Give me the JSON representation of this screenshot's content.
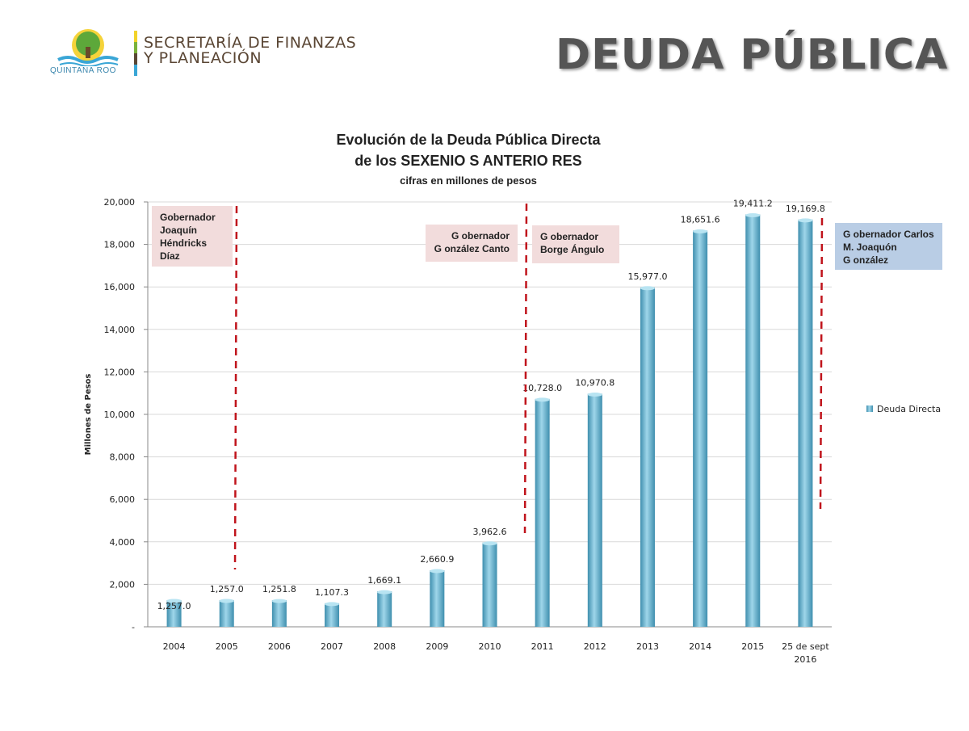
{
  "header": {
    "logo_lines": [
      "SECRETARÍA DE FINANZAS",
      "Y PLANEACIÓN"
    ],
    "logo_sub": "QUINTANA ROO",
    "title": "DEUDA PÚBLICA"
  },
  "chart_data": {
    "type": "bar",
    "title_lines": [
      "Evolución de la Deuda Pública Directa",
      "de los SEXENIO S ANTERIO RES"
    ],
    "subtitle": "cifras en millones de pesos",
    "ylabel": "Millones de Pesos",
    "xlabel": "",
    "ylim": [
      0,
      20000
    ],
    "yticks": [
      0,
      2000,
      4000,
      6000,
      8000,
      10000,
      12000,
      14000,
      16000,
      18000,
      20000
    ],
    "ytick_labels": [
      "-",
      "2,000",
      "4,000",
      "6,000",
      "8,000",
      "10,000",
      "12,000",
      "14,000",
      "16,000",
      "18,000",
      "20,000"
    ],
    "grid": true,
    "legend_position": "right",
    "categories": [
      "2004",
      "2005",
      "2006",
      "2007",
      "2008",
      "2009",
      "2010",
      "2011",
      "2012",
      "2013",
      "2014",
      "2015",
      "25 de sept 2016"
    ],
    "series": [
      {
        "name": "Deuda Directa",
        "color": "#6fb8d4",
        "values": [
          1257.0,
          1257.0,
          1251.8,
          1107.3,
          1669.1,
          2660.9,
          3962.6,
          10728.0,
          10970.8,
          15977.0,
          18651.6,
          19411.2,
          19169.8
        ],
        "labels": [
          "1,257.0",
          "1,257.0",
          "1,251.8",
          "1,107.3",
          "1,669.1",
          "2,660.9",
          "3,962.6",
          "10,728.0",
          "10,970.8",
          "15,977.0",
          "18,651.6",
          "19,411.2",
          "19,169.8"
        ]
      }
    ],
    "annotations": [
      {
        "text": "Gobernador Joaquín Héndricks Díaz",
        "lines": [
          "Gobernador",
          "Joaquín",
          "Héndricks",
          "Díaz"
        ],
        "color": "#f2dcdc"
      },
      {
        "text": "G obernador González Canto",
        "lines": [
          "G obernador",
          "G onzález Canto"
        ],
        "color": "#f2dcdc"
      },
      {
        "text": "G obernador Borge Ángulo",
        "lines": [
          "G obernador",
          "Borge Ángulo"
        ],
        "color": "#f2dcdc"
      },
      {
        "text": "G obernador Carlos M. Joaquón G onzález",
        "lines": [
          "G obernador Carlos",
          "M. Joaquón",
          "G onzález"
        ],
        "color": "#b9cde5"
      }
    ],
    "divider_color": "#c0141c"
  }
}
